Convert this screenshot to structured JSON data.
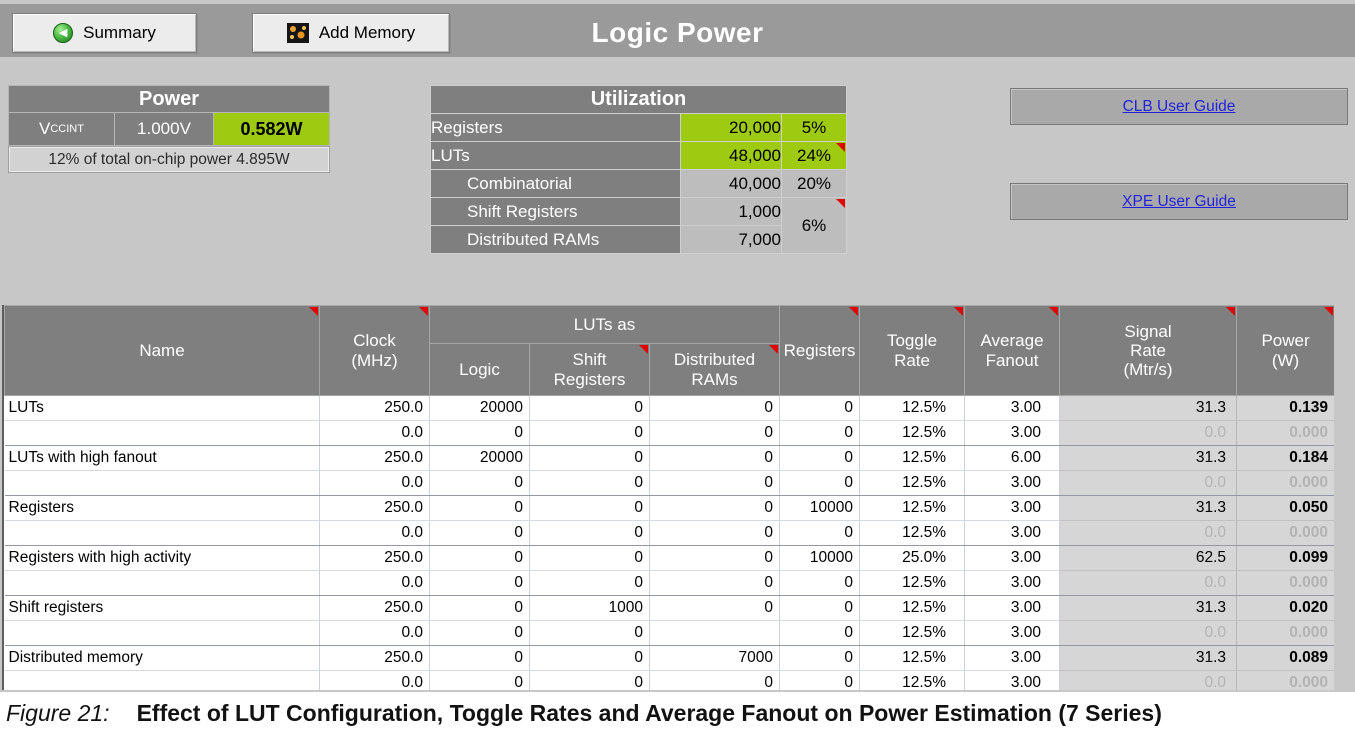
{
  "toolbar": {
    "summary_label": "Summary",
    "add_memory_label": "Add Memory",
    "title": "Logic Power"
  },
  "power_box": {
    "title": "Power",
    "rail": "V",
    "rail_sub": "CCINT",
    "voltage": "1.000V",
    "power": "0.582W",
    "note": "12% of total on-chip power 4.895W"
  },
  "utilization": {
    "title": "Utilization",
    "rows": [
      {
        "label": "Registers",
        "value": "20,000",
        "pct": "5%"
      },
      {
        "label": "LUTs",
        "value": "48,000",
        "pct": "24%"
      },
      {
        "label": "Combinatorial",
        "value": "40,000",
        "pct": "20%"
      },
      {
        "label": "Shift Registers",
        "value": "1,000"
      },
      {
        "label": "Distributed RAMs",
        "value": "7,000"
      }
    ],
    "group_pct": "6%"
  },
  "links": {
    "clb": "CLB User Guide",
    "xpe": "XPE User Guide"
  },
  "logic_table": {
    "headers": {
      "name": "Name",
      "clock": "Clock (MHz)",
      "luts_as": "LUTs as",
      "logic": "Logic",
      "shift": "Shift Registers",
      "dist": "Distributed RAMs",
      "regs": "Registers",
      "toggle": "Toggle Rate",
      "fanout": "Average Fanout",
      "signal": "Signal Rate (Mtr/s)",
      "power": "Power (W)"
    },
    "rows": [
      {
        "name": "LUTs",
        "clock": "250.0",
        "logic": "20000",
        "shift": "0",
        "dist": "0",
        "regs": "0",
        "toggle": "12.5%",
        "fanout": "3.00",
        "signal": "31.3",
        "power": "0.139",
        "active": true
      },
      {
        "name": "",
        "clock": "0.0",
        "logic": "0",
        "shift": "0",
        "dist": "0",
        "regs": "0",
        "toggle": "12.5%",
        "fanout": "3.00",
        "signal": "0.0",
        "power": "0.000",
        "active": false
      },
      {
        "name": "LUTs with high fanout",
        "clock": "250.0",
        "logic": "20000",
        "shift": "0",
        "dist": "0",
        "regs": "0",
        "toggle": "12.5%",
        "fanout": "6.00",
        "signal": "31.3",
        "power": "0.184",
        "active": true
      },
      {
        "name": "",
        "clock": "0.0",
        "logic": "0",
        "shift": "0",
        "dist": "0",
        "regs": "0",
        "toggle": "12.5%",
        "fanout": "3.00",
        "signal": "0.0",
        "power": "0.000",
        "active": false
      },
      {
        "name": "Registers",
        "clock": "250.0",
        "logic": "0",
        "shift": "0",
        "dist": "0",
        "regs": "10000",
        "toggle": "12.5%",
        "fanout": "3.00",
        "signal": "31.3",
        "power": "0.050",
        "active": true
      },
      {
        "name": "",
        "clock": "0.0",
        "logic": "0",
        "shift": "0",
        "dist": "0",
        "regs": "0",
        "toggle": "12.5%",
        "fanout": "3.00",
        "signal": "0.0",
        "power": "0.000",
        "active": false
      },
      {
        "name": "Registers with high activity",
        "clock": "250.0",
        "logic": "0",
        "shift": "0",
        "dist": "0",
        "regs": "10000",
        "toggle": "25.0%",
        "fanout": "3.00",
        "signal": "62.5",
        "power": "0.099",
        "active": true
      },
      {
        "name": "",
        "clock": "0.0",
        "logic": "0",
        "shift": "0",
        "dist": "0",
        "regs": "0",
        "toggle": "12.5%",
        "fanout": "3.00",
        "signal": "0.0",
        "power": "0.000",
        "active": false
      },
      {
        "name": "Shift registers",
        "clock": "250.0",
        "logic": "0",
        "shift": "1000",
        "dist": "0",
        "regs": "0",
        "toggle": "12.5%",
        "fanout": "3.00",
        "signal": "31.3",
        "power": "0.020",
        "active": true
      },
      {
        "name": "",
        "clock": "0.0",
        "logic": "0",
        "shift": "0",
        "dist": "",
        "regs": "0",
        "toggle": "12.5%",
        "fanout": "3.00",
        "signal": "0.0",
        "power": "0.000",
        "active": false
      },
      {
        "name": "Distributed memory",
        "clock": "250.0",
        "logic": "0",
        "shift": "0",
        "dist": "7000",
        "regs": "0",
        "toggle": "12.5%",
        "fanout": "3.00",
        "signal": "31.3",
        "power": "0.089",
        "active": true
      },
      {
        "name": "",
        "clock": "0.0",
        "logic": "0",
        "shift": "0",
        "dist": "0",
        "regs": "0",
        "toggle": "12.5%",
        "fanout": "3.00",
        "signal": "0.0",
        "power": "0.000",
        "active": false
      }
    ]
  },
  "caption": {
    "figure_label": "Figure 21:",
    "text": "Effect of LUT Configuration, Toggle Rates and Average Fanout on Power Estimation (7 Series)"
  },
  "colors": {
    "accent_green": "#9ecb12",
    "header_gray": "#7f7f7f",
    "calc_gray": "#d6d6d6",
    "link_blue": "#2222dd",
    "marker_red": "#e00000"
  }
}
